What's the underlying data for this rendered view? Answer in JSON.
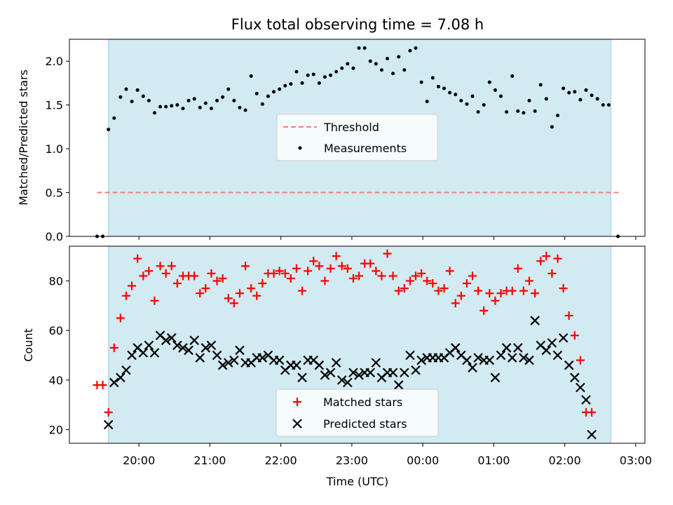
{
  "title": "Flux total observing time = 7.08 h",
  "colors": {
    "shade": "#add8e6",
    "threshold": "#f08080",
    "measurement": "#000000",
    "matched": "#ff0000",
    "predicted": "#000000"
  },
  "chart_data": [
    {
      "type": "scatter",
      "ylabel": "Matched/Predicted stars",
      "ylim": [
        0,
        2.25
      ],
      "yticks": [
        "0.0",
        "0.5",
        "1.0",
        "1.5",
        "2.0"
      ],
      "xlim": [
        19.02,
        27.13
      ],
      "shaded_region": [
        19.57,
        26.65
      ],
      "threshold": 0.5,
      "threshold_x_range": [
        19.41,
        26.8
      ],
      "legend": {
        "position": "center",
        "threshold_label": "Threshold",
        "measurements_label": "Measurements"
      },
      "measurements": [
        [
          19.41,
          0
        ],
        [
          19.49,
          0
        ],
        [
          19.57,
          1.22
        ],
        [
          19.65,
          1.35
        ],
        [
          19.74,
          1.59
        ],
        [
          19.82,
          1.68
        ],
        [
          19.9,
          1.54
        ],
        [
          19.98,
          1.67
        ],
        [
          20.06,
          1.6
        ],
        [
          20.14,
          1.55
        ],
        [
          20.22,
          1.41
        ],
        [
          20.3,
          1.48
        ],
        [
          20.38,
          1.48
        ],
        [
          20.46,
          1.49
        ],
        [
          20.54,
          1.5
        ],
        [
          20.62,
          1.46
        ],
        [
          20.7,
          1.55
        ],
        [
          20.78,
          1.57
        ],
        [
          20.86,
          1.47
        ],
        [
          20.94,
          1.52
        ],
        [
          21.02,
          1.46
        ],
        [
          21.1,
          1.55
        ],
        [
          21.18,
          1.59
        ],
        [
          21.26,
          1.68
        ],
        [
          21.34,
          1.55
        ],
        [
          21.42,
          1.47
        ],
        [
          21.5,
          1.44
        ],
        [
          21.58,
          1.83
        ],
        [
          21.66,
          1.63
        ],
        [
          21.74,
          1.51
        ],
        [
          21.82,
          1.6
        ],
        [
          21.9,
          1.65
        ],
        [
          21.98,
          1.68
        ],
        [
          22.06,
          1.72
        ],
        [
          22.14,
          1.74
        ],
        [
          22.22,
          1.88
        ],
        [
          22.3,
          1.75
        ],
        [
          22.38,
          1.84
        ],
        [
          22.46,
          1.85
        ],
        [
          22.54,
          1.75
        ],
        [
          22.62,
          1.82
        ],
        [
          22.7,
          1.84
        ],
        [
          22.78,
          1.88
        ],
        [
          22.86,
          1.92
        ],
        [
          22.94,
          1.97
        ],
        [
          23.02,
          1.92
        ],
        [
          23.1,
          2.15
        ],
        [
          23.18,
          2.15
        ],
        [
          23.26,
          2.0
        ],
        [
          23.34,
          1.97
        ],
        [
          23.42,
          1.9
        ],
        [
          23.5,
          2.03
        ],
        [
          23.58,
          1.86
        ],
        [
          23.66,
          2.05
        ],
        [
          23.74,
          1.9
        ],
        [
          23.82,
          2.12
        ],
        [
          23.9,
          2.15
        ],
        [
          23.98,
          1.76
        ],
        [
          24.06,
          1.54
        ],
        [
          24.14,
          1.81
        ],
        [
          24.22,
          1.71
        ],
        [
          24.3,
          1.69
        ],
        [
          24.38,
          1.64
        ],
        [
          24.46,
          1.62
        ],
        [
          24.54,
          1.55
        ],
        [
          24.62,
          1.51
        ],
        [
          24.7,
          1.6
        ],
        [
          24.78,
          1.42
        ],
        [
          24.86,
          1.5
        ],
        [
          24.94,
          1.76
        ],
        [
          25.02,
          1.67
        ],
        [
          25.1,
          1.6
        ],
        [
          25.18,
          1.42
        ],
        [
          25.26,
          1.83
        ],
        [
          25.34,
          1.43
        ],
        [
          25.42,
          1.41
        ],
        [
          25.5,
          1.55
        ],
        [
          25.58,
          1.43
        ],
        [
          25.66,
          1.73
        ],
        [
          25.74,
          1.57
        ],
        [
          25.82,
          1.25
        ],
        [
          25.9,
          1.38
        ],
        [
          25.98,
          1.69
        ],
        [
          26.06,
          1.64
        ],
        [
          26.14,
          1.65
        ],
        [
          26.22,
          1.56
        ],
        [
          26.3,
          1.67
        ],
        [
          26.38,
          1.61
        ],
        [
          26.46,
          1.57
        ],
        [
          26.54,
          1.5
        ],
        [
          26.62,
          1.5
        ],
        [
          26.75,
          0
        ]
      ]
    },
    {
      "type": "scatter",
      "xlabel": "Time (UTC)",
      "ylabel": "Count",
      "ylim": [
        14.5,
        94
      ],
      "yticks": [
        "20",
        "40",
        "60",
        "80"
      ],
      "xlim": [
        19.02,
        27.13
      ],
      "xticks": [
        "20:00",
        "21:00",
        "22:00",
        "23:00",
        "00:00",
        "01:00",
        "02:00",
        "03:00"
      ],
      "shaded_region": [
        19.57,
        26.65
      ],
      "legend": {
        "position": "lower center"
      },
      "series": [
        {
          "name": "Matched stars",
          "marker": "+",
          "points": [
            [
              19.41,
              38
            ],
            [
              19.49,
              38
            ],
            [
              19.57,
              27
            ],
            [
              19.65,
              53
            ],
            [
              19.74,
              65
            ],
            [
              19.82,
              74
            ],
            [
              19.9,
              78
            ],
            [
              19.98,
              89
            ],
            [
              20.06,
              82
            ],
            [
              20.14,
              84
            ],
            [
              20.22,
              72
            ],
            [
              20.3,
              86
            ],
            [
              20.38,
              83
            ],
            [
              20.46,
              86
            ],
            [
              20.54,
              79
            ],
            [
              20.62,
              82
            ],
            [
              20.7,
              82
            ],
            [
              20.78,
              82
            ],
            [
              20.86,
              75
            ],
            [
              20.94,
              77
            ],
            [
              21.02,
              83
            ],
            [
              21.1,
              80
            ],
            [
              21.18,
              81
            ],
            [
              21.26,
              73
            ],
            [
              21.34,
              71
            ],
            [
              21.42,
              75
            ],
            [
              21.5,
              86
            ],
            [
              21.58,
              77
            ],
            [
              21.66,
              74
            ],
            [
              21.74,
              79
            ],
            [
              21.82,
              83
            ],
            [
              21.9,
              83
            ],
            [
              21.98,
              84
            ],
            [
              22.06,
              83
            ],
            [
              22.14,
              81
            ],
            [
              22.22,
              85
            ],
            [
              22.3,
              76
            ],
            [
              22.38,
              84
            ],
            [
              22.46,
              88
            ],
            [
              22.54,
              86
            ],
            [
              22.62,
              80
            ],
            [
              22.7,
              85
            ],
            [
              22.78,
              90
            ],
            [
              22.86,
              86
            ],
            [
              22.94,
              85
            ],
            [
              23.02,
              81
            ],
            [
              23.1,
              82
            ],
            [
              23.18,
              87
            ],
            [
              23.26,
              87
            ],
            [
              23.34,
              84
            ],
            [
              23.42,
              82
            ],
            [
              23.5,
              91
            ],
            [
              23.58,
              82
            ],
            [
              23.66,
              76
            ],
            [
              23.74,
              77
            ],
            [
              23.82,
              80
            ],
            [
              23.9,
              82
            ],
            [
              23.98,
              83
            ],
            [
              24.06,
              80
            ],
            [
              24.14,
              79
            ],
            [
              24.22,
              76
            ],
            [
              24.3,
              77
            ],
            [
              24.38,
              84
            ],
            [
              24.46,
              71
            ],
            [
              24.54,
              74
            ],
            [
              24.62,
              79
            ],
            [
              24.7,
              82
            ],
            [
              24.78,
              76
            ],
            [
              24.86,
              68
            ],
            [
              24.94,
              75
            ],
            [
              25.02,
              72
            ],
            [
              25.1,
              75
            ],
            [
              25.18,
              76
            ],
            [
              25.26,
              76
            ],
            [
              25.34,
              85
            ],
            [
              25.42,
              76
            ],
            [
              25.5,
              80
            ],
            [
              25.58,
              75
            ],
            [
              25.66,
              88
            ],
            [
              25.74,
              90
            ],
            [
              25.82,
              83
            ],
            [
              25.9,
              89
            ],
            [
              25.98,
              77
            ],
            [
              26.06,
              66
            ],
            [
              26.14,
              58
            ],
            [
              26.22,
              48
            ],
            [
              26.3,
              27
            ],
            [
              26.38,
              27
            ]
          ]
        },
        {
          "name": "Predicted stars",
          "marker": "x",
          "points": [
            [
              19.57,
              22
            ],
            [
              19.65,
              39
            ],
            [
              19.74,
              41
            ],
            [
              19.82,
              44
            ],
            [
              19.9,
              50
            ],
            [
              19.98,
              53
            ],
            [
              20.06,
              51
            ],
            [
              20.14,
              54
            ],
            [
              20.22,
              51
            ],
            [
              20.3,
              58
            ],
            [
              20.38,
              56
            ],
            [
              20.46,
              57
            ],
            [
              20.54,
              54
            ],
            [
              20.62,
              53
            ],
            [
              20.7,
              52
            ],
            [
              20.78,
              56
            ],
            [
              20.86,
              49
            ],
            [
              20.94,
              53
            ],
            [
              21.02,
              54
            ],
            [
              21.1,
              50
            ],
            [
              21.18,
              46
            ],
            [
              21.26,
              47
            ],
            [
              21.34,
              48
            ],
            [
              21.42,
              52
            ],
            [
              21.5,
              47
            ],
            [
              21.58,
              47
            ],
            [
              21.66,
              49
            ],
            [
              21.74,
              49
            ],
            [
              21.82,
              50
            ],
            [
              21.9,
              48
            ],
            [
              21.98,
              48
            ],
            [
              22.06,
              44
            ],
            [
              22.14,
              46
            ],
            [
              22.22,
              46
            ],
            [
              22.3,
              41
            ],
            [
              22.38,
              48
            ],
            [
              22.46,
              48
            ],
            [
              22.54,
              46
            ],
            [
              22.62,
              42
            ],
            [
              22.7,
              43
            ],
            [
              22.78,
              47
            ],
            [
              22.86,
              40
            ],
            [
              22.94,
              39
            ],
            [
              23.02,
              43
            ],
            [
              23.1,
              42
            ],
            [
              23.18,
              43
            ],
            [
              23.26,
              43
            ],
            [
              23.34,
              47
            ],
            [
              23.42,
              41
            ],
            [
              23.5,
              43
            ],
            [
              23.58,
              43
            ],
            [
              23.66,
              38
            ],
            [
              23.74,
              43
            ],
            [
              23.82,
              50
            ],
            [
              23.9,
              44
            ],
            [
              23.98,
              48
            ],
            [
              24.06,
              49
            ],
            [
              24.14,
              49
            ],
            [
              24.22,
              49
            ],
            [
              24.3,
              49
            ],
            [
              24.38,
              51
            ],
            [
              24.46,
              53
            ],
            [
              24.54,
              50
            ],
            [
              24.62,
              48
            ],
            [
              24.7,
              45
            ],
            [
              24.78,
              49
            ],
            [
              24.86,
              48
            ],
            [
              24.94,
              48
            ],
            [
              25.02,
              41
            ],
            [
              25.1,
              50
            ],
            [
              25.18,
              53
            ],
            [
              25.26,
              49
            ],
            [
              25.34,
              53
            ],
            [
              25.42,
              49
            ],
            [
              25.5,
              48
            ],
            [
              25.58,
              64
            ],
            [
              25.66,
              54
            ],
            [
              25.74,
              52
            ],
            [
              25.82,
              55
            ],
            [
              25.9,
              50
            ],
            [
              25.98,
              57
            ],
            [
              26.06,
              46
            ],
            [
              26.14,
              41
            ],
            [
              26.22,
              37
            ],
            [
              26.3,
              32
            ],
            [
              26.38,
              18
            ]
          ]
        }
      ]
    }
  ]
}
